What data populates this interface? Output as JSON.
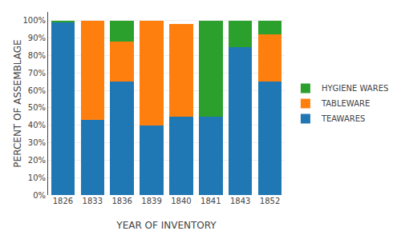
{
  "chart_data": {
    "type": "bar",
    "stacked": true,
    "xlabel": "YEAR OF INVENTORY",
    "ylabel": "PERCENT OF ASSEMBLAGE",
    "categories": [
      "1826",
      "1833",
      "1836",
      "1839",
      "1840",
      "1841",
      "1843",
      "1852"
    ],
    "series": [
      {
        "name": "TEAWARES",
        "values": [
          99,
          43,
          65,
          40,
          45,
          45,
          85,
          65
        ]
      },
      {
        "name": "TABLEWARE",
        "values": [
          0,
          57,
          23,
          60,
          53,
          0,
          0,
          27
        ]
      },
      {
        "name": "HYGIENE WARES",
        "values": [
          1,
          0,
          12,
          0,
          0,
          55,
          15,
          8
        ]
      }
    ],
    "ylim": [
      0,
      105
    ],
    "yticks": [
      {
        "value": 0,
        "label": "0%"
      },
      {
        "value": 10,
        "label": "10%"
      },
      {
        "value": 20,
        "label": "20%"
      },
      {
        "value": 30,
        "label": "30%"
      },
      {
        "value": 40,
        "label": "40%"
      },
      {
        "value": 50,
        "label": "50%"
      },
      {
        "value": 60,
        "label": "60%"
      },
      {
        "value": 70,
        "label": "70%"
      },
      {
        "value": 80,
        "label": "80%"
      },
      {
        "value": 90,
        "label": "90%"
      },
      {
        "value": 100,
        "label": "100%"
      }
    ],
    "grid": true,
    "legend": "right"
  }
}
